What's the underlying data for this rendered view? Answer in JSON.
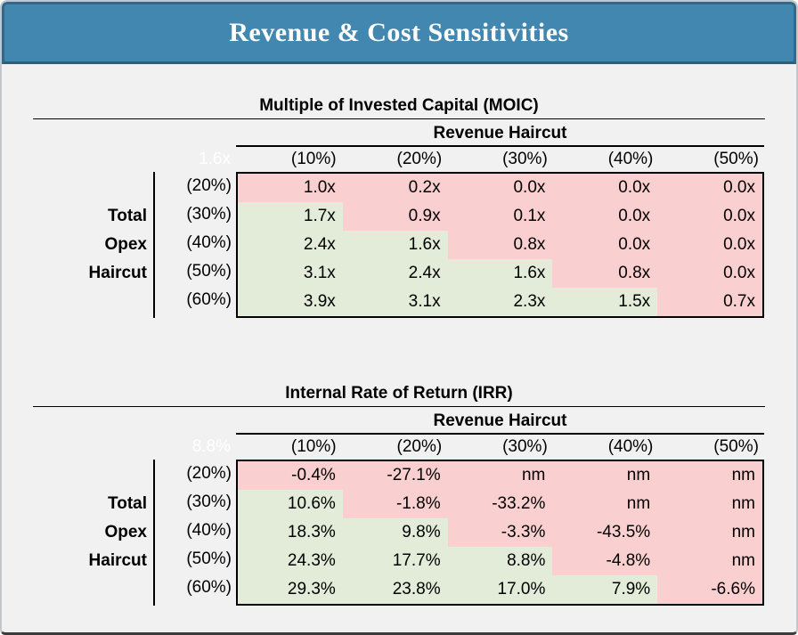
{
  "page_title": "Revenue & Cost Sensitivities",
  "colors": {
    "header_bg": "#4187B0",
    "header_edge": "#33678B",
    "header_bottom": "#2C5E7E",
    "page_bg": "#F1F1F2",
    "cell_red": "#F9CFD0",
    "cell_green": "#E3EBD9",
    "corner_text": "#FFFFFF",
    "text": "#000000"
  },
  "tables": [
    {
      "title": "Multiple of Invested Capital (MOIC)",
      "col_group_label": "Revenue Haircut",
      "corner_value": "1.6x",
      "row_group_label": [
        "Total",
        "Opex",
        "Haircut"
      ],
      "col_headers": [
        "(10%)",
        "(20%)",
        "(30%)",
        "(40%)",
        "(50%)"
      ],
      "row_headers": [
        "(20%)",
        "(30%)",
        "(40%)",
        "(50%)",
        "(60%)"
      ],
      "rows": [
        {
          "values": [
            "1.0x",
            "0.2x",
            "0.0x",
            "0.0x",
            "0.0x"
          ],
          "colors": [
            "red",
            "red",
            "red",
            "red",
            "red"
          ]
        },
        {
          "values": [
            "1.7x",
            "0.9x",
            "0.1x",
            "0.0x",
            "0.0x"
          ],
          "colors": [
            "green",
            "red",
            "red",
            "red",
            "red"
          ]
        },
        {
          "values": [
            "2.4x",
            "1.6x",
            "0.8x",
            "0.0x",
            "0.0x"
          ],
          "colors": [
            "green",
            "green",
            "red",
            "red",
            "red"
          ]
        },
        {
          "values": [
            "3.1x",
            "2.4x",
            "1.6x",
            "0.8x",
            "0.0x"
          ],
          "colors": [
            "green",
            "green",
            "green",
            "red",
            "red"
          ]
        },
        {
          "values": [
            "3.9x",
            "3.1x",
            "2.3x",
            "1.5x",
            "0.7x"
          ],
          "colors": [
            "green",
            "green",
            "green",
            "green",
            "red"
          ]
        }
      ]
    },
    {
      "title": "Internal Rate of Return (IRR)",
      "col_group_label": "Revenue Haircut",
      "corner_value": "8.8%",
      "row_group_label": [
        "Total",
        "Opex",
        "Haircut"
      ],
      "col_headers": [
        "(10%)",
        "(20%)",
        "(30%)",
        "(40%)",
        "(50%)"
      ],
      "row_headers": [
        "(20%)",
        "(30%)",
        "(40%)",
        "(50%)",
        "(60%)"
      ],
      "rows": [
        {
          "values": [
            "-0.4%",
            "-27.1%",
            "nm",
            "nm",
            "nm"
          ],
          "colors": [
            "red",
            "red",
            "red",
            "red",
            "red"
          ]
        },
        {
          "values": [
            "10.6%",
            "-1.8%",
            "-33.2%",
            "nm",
            "nm"
          ],
          "colors": [
            "green",
            "red",
            "red",
            "red",
            "red"
          ]
        },
        {
          "values": [
            "18.3%",
            "9.8%",
            "-3.3%",
            "-43.5%",
            "nm"
          ],
          "colors": [
            "green",
            "green",
            "red",
            "red",
            "red"
          ]
        },
        {
          "values": [
            "24.3%",
            "17.7%",
            "8.8%",
            "-4.8%",
            "nm"
          ],
          "colors": [
            "green",
            "green",
            "green",
            "red",
            "red"
          ]
        },
        {
          "values": [
            "29.3%",
            "23.8%",
            "17.0%",
            "7.9%",
            "-6.6%"
          ],
          "colors": [
            "green",
            "green",
            "green",
            "green",
            "red"
          ]
        }
      ]
    }
  ],
  "chart_data": [
    {
      "type": "table",
      "title": "Multiple of Invested Capital (MOIC)",
      "column_group": "Revenue Haircut",
      "row_group": "Total Opex Haircut",
      "base_value": "1.6x",
      "columns": [
        "(10%)",
        "(20%)",
        "(30%)",
        "(40%)",
        "(50%)"
      ],
      "rows": [
        "(20%)",
        "(30%)",
        "(40%)",
        "(50%)",
        "(60%)"
      ],
      "values": [
        [
          1.0,
          0.2,
          0.0,
          0.0,
          0.0
        ],
        [
          1.7,
          0.9,
          0.1,
          0.0,
          0.0
        ],
        [
          2.4,
          1.6,
          0.8,
          0.0,
          0.0
        ],
        [
          3.1,
          2.4,
          1.6,
          0.8,
          0.0
        ],
        [
          3.9,
          3.1,
          2.3,
          1.5,
          0.7
        ]
      ],
      "unit": "x"
    },
    {
      "type": "table",
      "title": "Internal Rate of Return (IRR)",
      "column_group": "Revenue Haircut",
      "row_group": "Total Opex Haircut",
      "base_value": "8.8%",
      "columns": [
        "(10%)",
        "(20%)",
        "(30%)",
        "(40%)",
        "(50%)"
      ],
      "rows": [
        "(20%)",
        "(30%)",
        "(40%)",
        "(50%)",
        "(60%)"
      ],
      "values": [
        [
          -0.4,
          -27.1,
          null,
          null,
          null
        ],
        [
          10.6,
          -1.8,
          -33.2,
          null,
          null
        ],
        [
          18.3,
          9.8,
          -3.3,
          -43.5,
          null
        ],
        [
          24.3,
          17.7,
          8.8,
          -4.8,
          null
        ],
        [
          29.3,
          23.8,
          17.0,
          7.9,
          -6.6
        ]
      ],
      "unit": "%",
      "null_label": "nm"
    }
  ]
}
